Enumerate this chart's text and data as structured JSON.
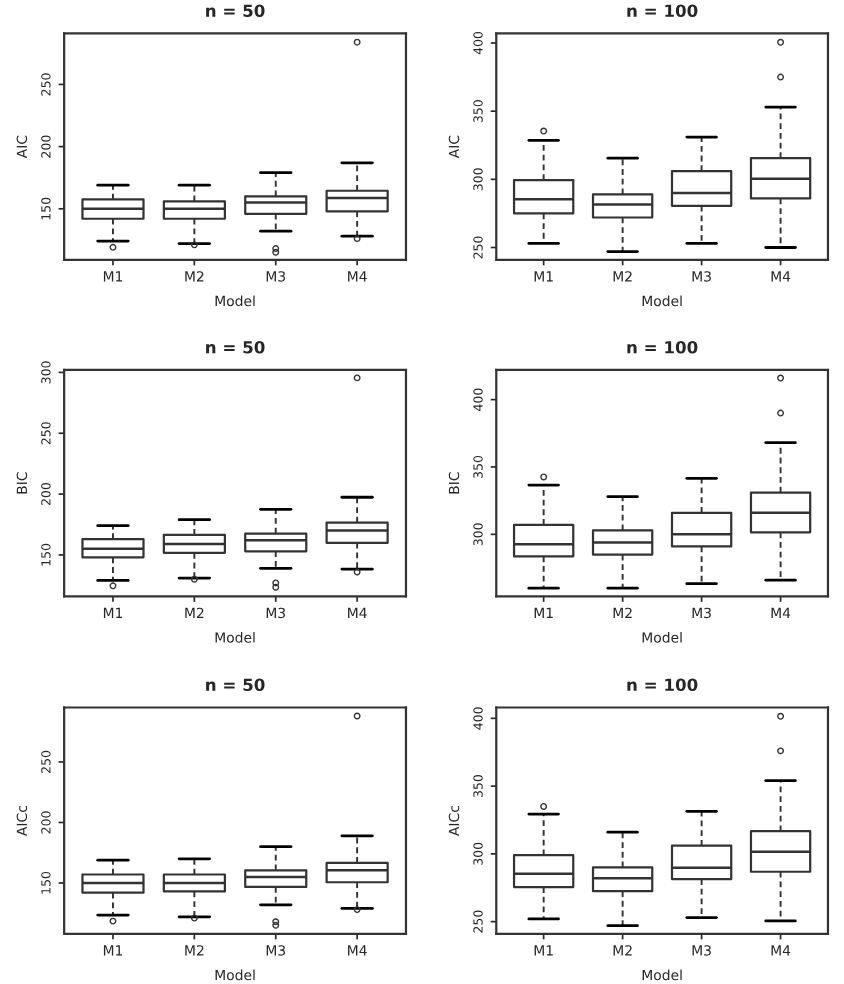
{
  "chart_data": [
    {
      "type": "box",
      "title": "n = 50",
      "xlabel": "Model",
      "ylabel": "AIC",
      "categories": [
        "M1",
        "M2",
        "M3",
        "M4"
      ],
      "ylim": [
        109,
        291
      ],
      "yticks": [
        150,
        200,
        250
      ],
      "grid": false,
      "boxes": [
        {
          "low": 124,
          "q1": 142,
          "median": 150,
          "q3": 157.5,
          "high": 169,
          "outliers": [
            119
          ]
        },
        {
          "low": 122,
          "q1": 142,
          "median": 150,
          "q3": 156,
          "high": 169,
          "outliers": [
            121
          ]
        },
        {
          "low": 132,
          "q1": 146,
          "median": 155,
          "q3": 160,
          "high": 179,
          "outliers": [
            118,
            115
          ]
        },
        {
          "low": 128,
          "q1": 148,
          "median": 158.6,
          "q3": 164.5,
          "high": 187,
          "outliers": [
            126,
            284
          ]
        }
      ]
    },
    {
      "type": "box",
      "title": "n = 100",
      "xlabel": "Model",
      "ylabel": "AIC",
      "categories": [
        "M1",
        "M2",
        "M3",
        "M4"
      ],
      "ylim": [
        241,
        407
      ],
      "yticks": [
        250,
        300,
        350,
        400
      ],
      "grid": false,
      "boxes": [
        {
          "low": 253,
          "q1": 275,
          "median": 285.4,
          "q3": 299.5,
          "high": 328.6,
          "outliers": [
            335.4
          ]
        },
        {
          "low": 247,
          "q1": 272,
          "median": 281.5,
          "q3": 289,
          "high": 315.5
        },
        {
          "low": 253,
          "q1": 280.6,
          "median": 290,
          "q3": 306,
          "high": 331
        },
        {
          "low": 250,
          "q1": 286,
          "median": 300.5,
          "q3": 315.5,
          "high": 353,
          "outliers": [
            375,
            400.5
          ]
        }
      ]
    },
    {
      "type": "box",
      "title": "n = 50",
      "xlabel": "Model",
      "ylabel": "BIC",
      "categories": [
        "M1",
        "M2",
        "M3",
        "M4"
      ],
      "ylim": [
        116,
        302
      ],
      "yticks": [
        150,
        200,
        250,
        300
      ],
      "grid": false,
      "boxes": [
        {
          "low": 129,
          "q1": 148,
          "median": 155,
          "q3": 163,
          "high": 174,
          "outliers": [
            124.6
          ]
        },
        {
          "low": 131,
          "q1": 151.7,
          "median": 159,
          "q3": 166.5,
          "high": 179,
          "outliers": [
            130
          ]
        },
        {
          "low": 139,
          "q1": 153,
          "median": 162,
          "q3": 167.6,
          "high": 187.5,
          "outliers": [
            127,
            123.5
          ]
        },
        {
          "low": 138.4,
          "q1": 160,
          "median": 170,
          "q3": 176.5,
          "high": 197.4,
          "outliers": [
            136,
            295.5
          ]
        }
      ]
    },
    {
      "type": "box",
      "title": "n = 100",
      "xlabel": "Model",
      "ylabel": "BIC",
      "categories": [
        "M1",
        "M2",
        "M3",
        "M4"
      ],
      "ylim": [
        254,
        422
      ],
      "yticks": [
        300,
        350,
        400
      ],
      "grid": false,
      "boxes": [
        {
          "low": 260,
          "q1": 283.7,
          "median": 292.6,
          "q3": 307,
          "high": 336.6,
          "outliers": [
            342.6
          ]
        },
        {
          "low": 260,
          "q1": 285,
          "median": 294,
          "q3": 303,
          "high": 328
        },
        {
          "low": 263.4,
          "q1": 291,
          "median": 300,
          "q3": 316,
          "high": 341.6
        },
        {
          "low": 266,
          "q1": 301.5,
          "median": 316,
          "q3": 331,
          "high": 368,
          "outliers": [
            390,
            416
          ]
        }
      ]
    },
    {
      "type": "box",
      "title": "n = 50",
      "xlabel": "Model",
      "ylabel": "AICc",
      "categories": [
        "M1",
        "M2",
        "M3",
        "M4"
      ],
      "ylim": [
        108,
        295
      ],
      "yticks": [
        150,
        200,
        250
      ],
      "grid": false,
      "boxes": [
        {
          "low": 123.5,
          "q1": 142,
          "median": 150,
          "q3": 157,
          "high": 168.8,
          "outliers": [
            118.5
          ]
        },
        {
          "low": 122,
          "q1": 143,
          "median": 150,
          "q3": 157,
          "high": 170,
          "outliers": [
            121
          ]
        },
        {
          "low": 132,
          "q1": 146.7,
          "median": 155,
          "q3": 160.5,
          "high": 180,
          "outliers": [
            118,
            115
          ]
        },
        {
          "low": 129,
          "q1": 150.6,
          "median": 160.5,
          "q3": 166.6,
          "high": 189,
          "outliers": [
            128,
            288
          ]
        }
      ]
    },
    {
      "type": "box",
      "title": "n = 100",
      "xlabel": "Model",
      "ylabel": "AICc",
      "categories": [
        "M1",
        "M2",
        "M3",
        "M4"
      ],
      "ylim": [
        241,
        408
      ],
      "yticks": [
        250,
        300,
        350,
        400
      ],
      "grid": false,
      "boxes": [
        {
          "low": 252,
          "q1": 275.5,
          "median": 285.3,
          "q3": 299,
          "high": 329.4,
          "outliers": [
            335
          ]
        },
        {
          "low": 247,
          "q1": 272.5,
          "median": 282,
          "q3": 290,
          "high": 316
        },
        {
          "low": 253,
          "q1": 281.4,
          "median": 289.7,
          "q3": 306,
          "high": 331.4
        },
        {
          "low": 250.5,
          "q1": 286.8,
          "median": 301.5,
          "q3": 316.7,
          "high": 354,
          "outliers": [
            376,
            401.5
          ]
        }
      ]
    }
  ]
}
